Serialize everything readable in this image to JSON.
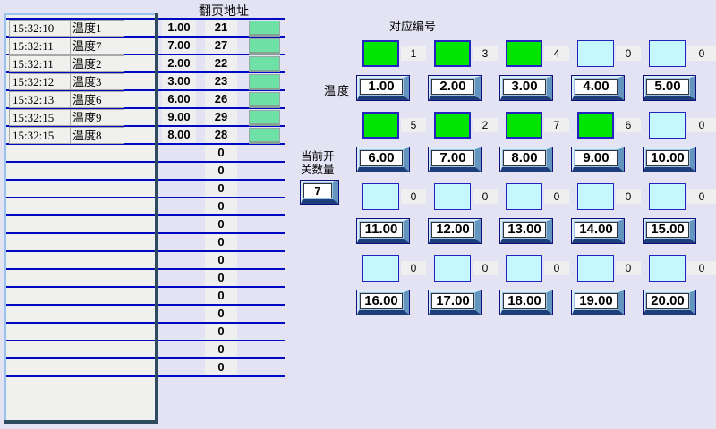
{
  "colors": {
    "page_bg": "#E3E3F4",
    "grid_line_blue": "#0008C0",
    "switch_on_green": "#00E600",
    "switch_off_cyan": "#C5F8FD",
    "status_cell_green": "#6FE0A6",
    "table_border_dark": "#2E4B5E",
    "table_border_light": "#96C4EE"
  },
  "header": {
    "page_address_label": "翻页地址"
  },
  "log_table": {
    "rows": [
      {
        "time": "15:32:10",
        "name": "温度1",
        "page": "1.00",
        "address": "21"
      },
      {
        "time": "15:32:11",
        "name": "温度7",
        "page": "7.00",
        "address": "27"
      },
      {
        "time": "15:32:11",
        "name": "温度2",
        "page": "2.00",
        "address": "22"
      },
      {
        "time": "15:32:12",
        "name": "温度3",
        "page": "3.00",
        "address": "23"
      },
      {
        "time": "15:32:13",
        "name": "温度6",
        "page": "6.00",
        "address": "26"
      },
      {
        "time": "15:32:15",
        "name": "温度9",
        "page": "9.00",
        "address": "29"
      },
      {
        "time": "15:32:15",
        "name": "温度8",
        "page": "8.00",
        "address": "28"
      }
    ],
    "empty_addresses": [
      "0",
      "0",
      "0",
      "0",
      "0",
      "0",
      "0",
      "0",
      "0",
      "0",
      "0",
      "0",
      "0"
    ]
  },
  "panel": {
    "title": "对应编号",
    "temperature_label": "温度",
    "switch_count_label": {
      "line1": "当前开",
      "line2": "关数量"
    },
    "switch_count_value": "7",
    "indicator_rows": [
      [
        {
          "state": "on",
          "num": "1"
        },
        {
          "state": "on",
          "num": "3"
        },
        {
          "state": "on",
          "num": "4"
        },
        {
          "state": "off",
          "num": "0"
        },
        {
          "state": "off",
          "num": "0"
        }
      ],
      [
        {
          "state": "on",
          "num": "5"
        },
        {
          "state": "on",
          "num": "2"
        },
        {
          "state": "on",
          "num": "7"
        },
        {
          "state": "on",
          "num": "6"
        },
        {
          "state": "off",
          "num": "0"
        }
      ],
      [
        {
          "state": "off",
          "num": "0"
        },
        {
          "state": "off",
          "num": "0"
        },
        {
          "state": "off",
          "num": "0"
        },
        {
          "state": "off",
          "num": "0"
        },
        {
          "state": "off",
          "num": "0"
        }
      ],
      [
        {
          "state": "off",
          "num": "0"
        },
        {
          "state": "off",
          "num": "0"
        },
        {
          "state": "off",
          "num": "0"
        },
        {
          "state": "off",
          "num": "0"
        },
        {
          "state": "off",
          "num": "0"
        }
      ]
    ],
    "buttons": [
      [
        "1.00",
        "2.00",
        "3.00",
        "4.00",
        "5.00"
      ],
      [
        "6.00",
        "7.00",
        "8.00",
        "9.00",
        "10.00"
      ],
      [
        "11.00",
        "12.00",
        "13.00",
        "14.00",
        "15.00"
      ],
      [
        "16.00",
        "17.00",
        "18.00",
        "19.00",
        "20.00"
      ]
    ]
  }
}
